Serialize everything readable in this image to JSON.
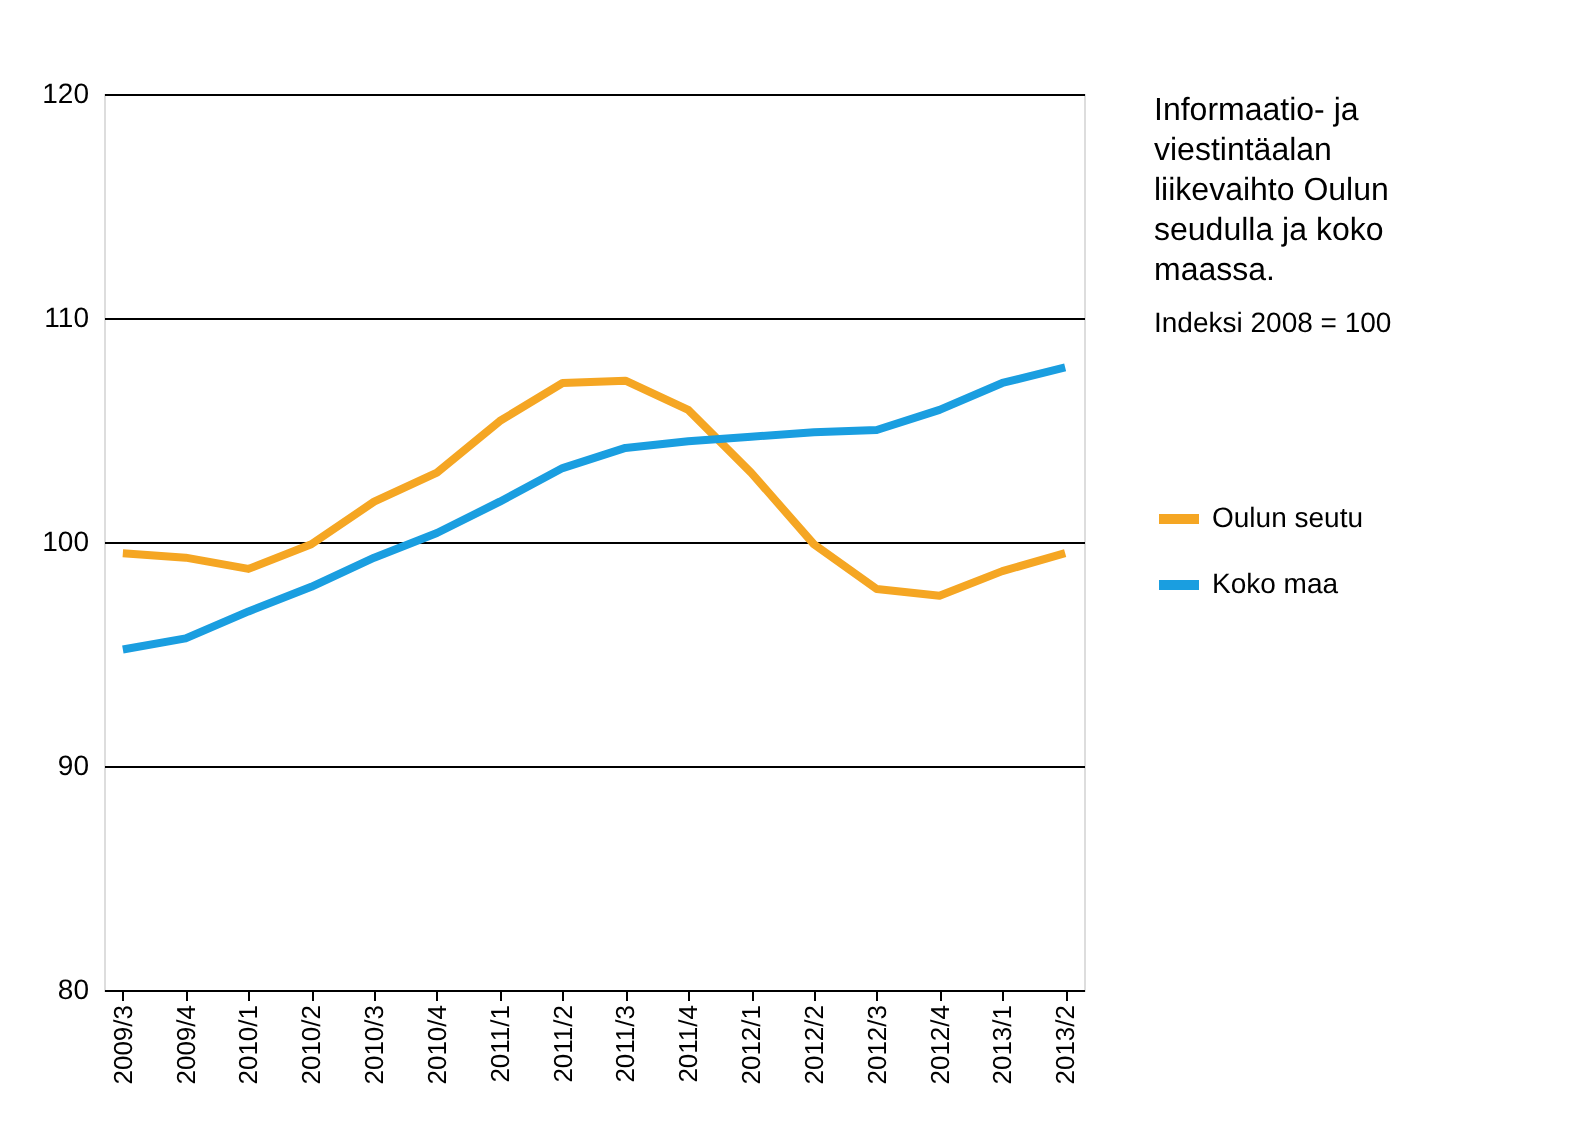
{
  "chart_data": {
    "type": "line",
    "title": "Informaatio- ja viestintäalan liikevaihto Oulun seudulla ja koko maassa.",
    "subtitle": "Indeksi 2008 = 100",
    "categories": [
      "2009/3",
      "2009/4",
      "2010/1",
      "2010/2",
      "2010/3",
      "2010/4",
      "2011/1",
      "2011/2",
      "2011/3",
      "2011/4",
      "2012/1",
      "2012/2",
      "2012/3",
      "2012/4",
      "2013/1",
      "2013/2"
    ],
    "series": [
      {
        "name": "Oulun seutu",
        "color": "#f5a623",
        "values": [
          99.5,
          99.3,
          98.8,
          99.9,
          101.8,
          103.1,
          105.4,
          107.1,
          107.2,
          105.9,
          103.1,
          99.9,
          97.9,
          97.6,
          98.7,
          99.5
        ]
      },
      {
        "name": "Koko maa",
        "color": "#1a9ee0",
        "values": [
          95.2,
          95.7,
          96.9,
          98.0,
          99.3,
          100.4,
          101.8,
          103.3,
          104.2,
          104.5,
          104.7,
          104.9,
          105.0,
          105.9,
          107.1,
          107.8
        ]
      }
    ],
    "ylim": [
      80,
      120
    ],
    "yticks": [
      80,
      90,
      100,
      110,
      120
    ],
    "grid": "y",
    "legend": "right",
    "marker": "none",
    "line_style": "solid"
  }
}
